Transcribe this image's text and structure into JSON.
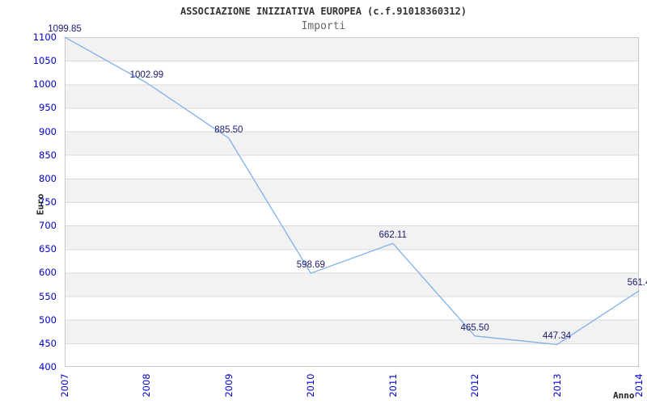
{
  "header": {
    "title": "ASSOCIAZIONE INIZIATIVA EUROPEA (c.f.91018360312)",
    "subtitle": "Importi"
  },
  "chart_data": {
    "type": "line",
    "title": "ASSOCIAZIONE INIZIATIVA EUROPEA (c.f.91018360312)",
    "subtitle": "Importi",
    "xlabel": "Anno",
    "ylabel": "Euro",
    "categories": [
      "2007",
      "2008",
      "2009",
      "2010",
      "2011",
      "2012",
      "2013",
      "2014"
    ],
    "values": [
      1099.85,
      1002.99,
      885.5,
      598.69,
      662.11,
      465.5,
      447.34,
      561.4
    ],
    "point_labels": [
      "1099.85",
      "1002.99",
      "885.50",
      "598.69",
      "662.11",
      "465.50",
      "447.34",
      "561.4"
    ],
    "y_ticks": [
      1100,
      1050,
      1000,
      950,
      900,
      850,
      800,
      750,
      700,
      650,
      600,
      550,
      500,
      450,
      400
    ],
    "ylim": [
      400,
      1100
    ],
    "grid": "horizontal-bands-alternating",
    "legend": "none",
    "colors": {
      "line": "#7fb0e6",
      "tick_label": "#0000cc",
      "point_label": "#1a1a70",
      "band": "#f2f2f2",
      "gridline": "#d9d9d9",
      "plot_border": "#c9c9c9",
      "title": "#333333",
      "subtitle": "#666666",
      "axis_title": "#222222",
      "background": "#ffffff"
    }
  }
}
